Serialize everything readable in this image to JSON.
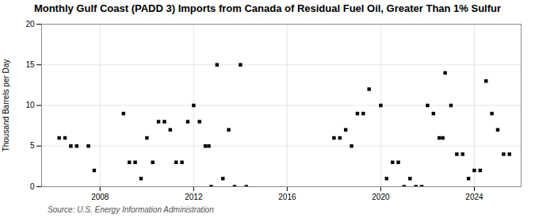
{
  "chart_data": {
    "type": "scatter",
    "title": "Monthly Gulf Coast (PADD 3) Imports from Canada of Residual Fuel Oil, Greater Than 1% Sulfur",
    "ylabel": "Thousand Barrels per Day",
    "annotations": [
      "Source: U.S. Energy Information Administration"
    ],
    "marker": "square",
    "grid": true,
    "xlim": [
      2005.5,
      2026.0
    ],
    "xticks": [
      2008,
      2012,
      2016,
      2020,
      2024
    ],
    "ylim": [
      0,
      20
    ],
    "yticks": [
      0,
      5,
      10,
      15,
      20
    ],
    "x": [
      2006.25,
      2006.5,
      2006.75,
      2007.0,
      2007.5,
      2007.75,
      2009.0,
      2009.25,
      2009.5,
      2009.75,
      2010.0,
      2010.25,
      2010.5,
      2010.75,
      2011.0,
      2011.25,
      2011.5,
      2011.75,
      2012.0,
      2012.25,
      2012.5,
      2012.65,
      2012.75,
      2013.0,
      2013.25,
      2013.5,
      2013.75,
      2014.0,
      2014.25,
      2018.0,
      2018.25,
      2018.5,
      2018.75,
      2019.0,
      2019.25,
      2019.5,
      2020.0,
      2020.25,
      2020.5,
      2020.75,
      2021.0,
      2021.25,
      2021.5,
      2021.75,
      2022.0,
      2022.25,
      2022.5,
      2022.65,
      2022.75,
      2023.0,
      2023.25,
      2023.5,
      2023.75,
      2024.0,
      2024.25,
      2024.5,
      2024.75,
      2025.0,
      2025.25,
      2025.5
    ],
    "values": [
      6.0,
      6.0,
      5.0,
      5.0,
      5.0,
      2.0,
      9.0,
      3.0,
      3.0,
      1.0,
      6.0,
      3.0,
      8.0,
      8.0,
      7.0,
      3.0,
      3.0,
      8.0,
      10.0,
      8.0,
      5.0,
      5.0,
      0.0,
      15.0,
      1.0,
      7.0,
      0.0,
      15.0,
      0.0,
      6.0,
      6.0,
      7.0,
      5.0,
      9.0,
      9.0,
      12.0,
      10.0,
      1.0,
      3.0,
      3.0,
      0.0,
      1.0,
      0.0,
      0.0,
      10.0,
      9.0,
      6.0,
      6.0,
      14.0,
      10.0,
      4.0,
      4.0,
      1.0,
      2.0,
      2.0,
      13.0,
      9.0,
      7.0,
      4.0,
      4.0
    ]
  }
}
